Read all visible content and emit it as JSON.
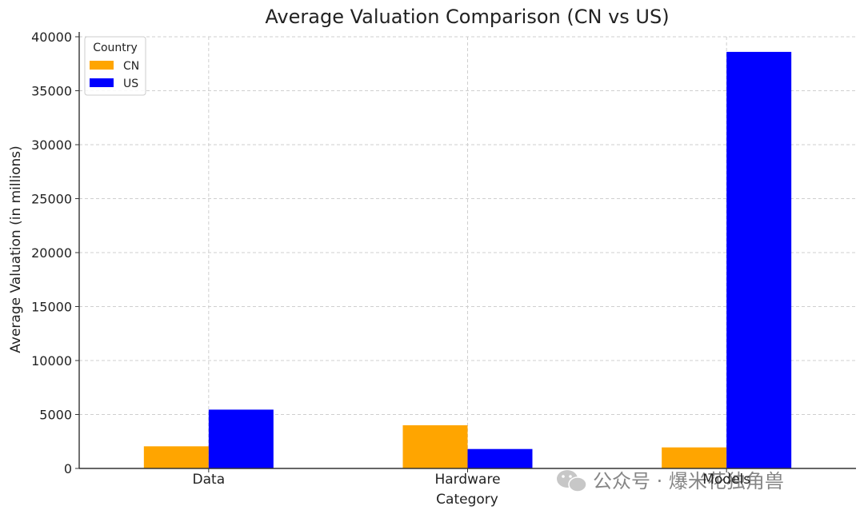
{
  "chart_data": {
    "type": "bar",
    "title": "Average Valuation Comparison (CN vs US)",
    "xlabel": "Category",
    "ylabel": "Average Valuation (in millions)",
    "categories": [
      "Data",
      "Hardware",
      "Models"
    ],
    "series": [
      {
        "name": "CN",
        "color": "#FFA500",
        "values": [
          2050,
          4000,
          1950
        ]
      },
      {
        "name": "US",
        "color": "#0000FF",
        "values": [
          5450,
          1800,
          38600
        ]
      }
    ],
    "ylim": [
      0,
      40000
    ],
    "yticks": [
      0,
      5000,
      10000,
      15000,
      20000,
      25000,
      30000,
      35000,
      40000
    ],
    "yticks_labels": [
      "0",
      "5000",
      "10000",
      "15000",
      "20000",
      "25000",
      "30000",
      "35000",
      "40000"
    ],
    "grid": true,
    "legend": {
      "title": "Country",
      "placement": "top-left"
    }
  },
  "watermark": {
    "text": "公众号 · 爆米花独角兽",
    "icon": "wechat-icon"
  }
}
